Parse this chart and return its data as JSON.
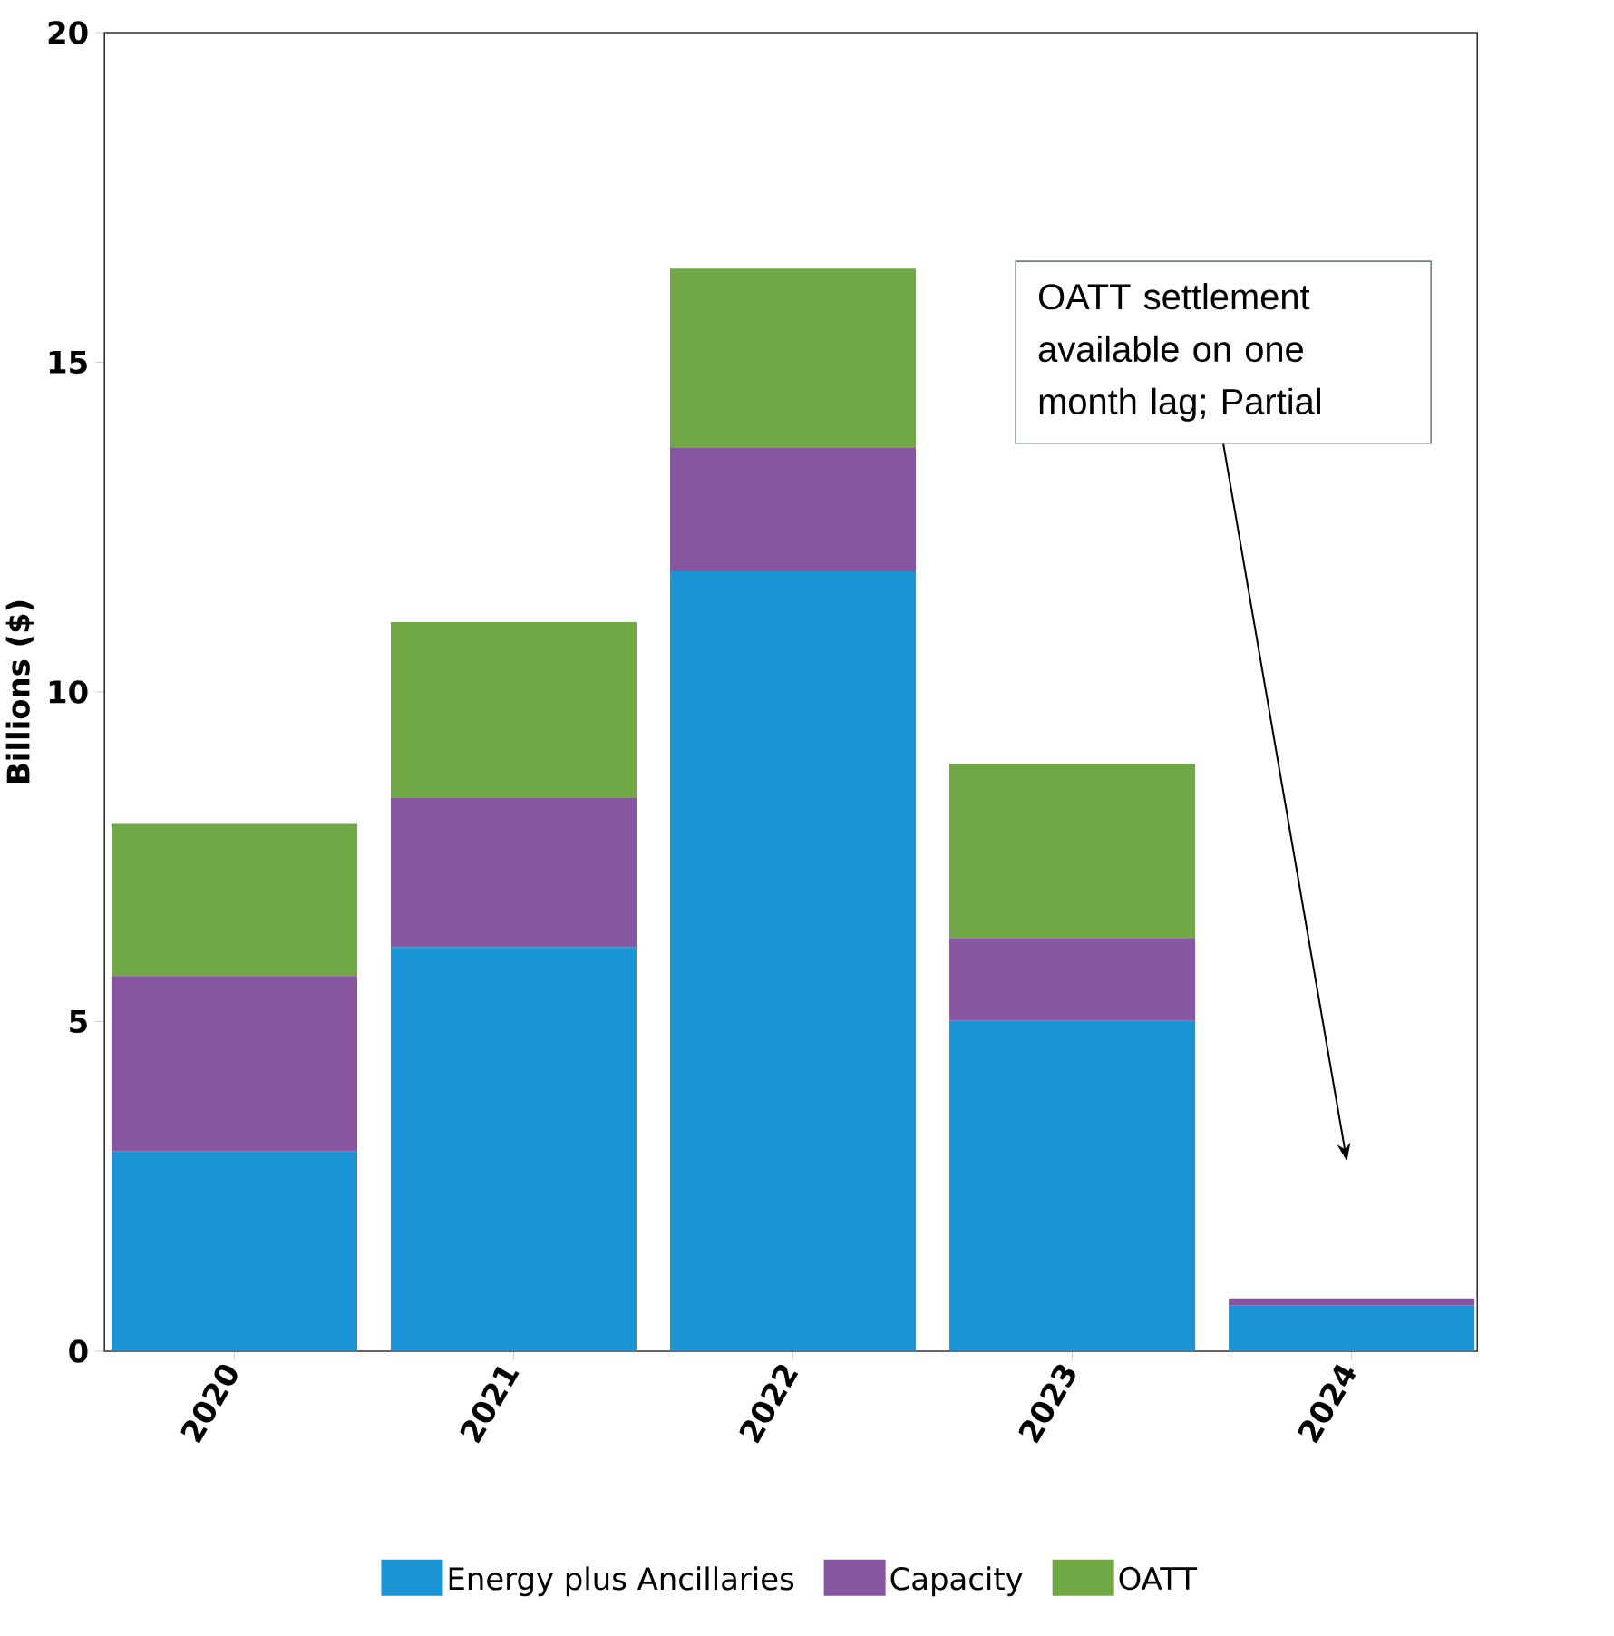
{
  "chart_data": {
    "type": "bar",
    "stacked": true,
    "ylabel": "Billions ($)",
    "categories": [
      "2020",
      "2021",
      "2022",
      "2023",
      "2024"
    ],
    "series": [
      {
        "name": "Energy plus Ancillaries",
        "color": "#1a94d4",
        "values": [
          3.03,
          6.13,
          11.83,
          5.01,
          0.69
        ]
      },
      {
        "name": "Capacity",
        "color": "#8855a1",
        "values": [
          2.66,
          2.26,
          1.87,
          1.26,
          0.11
        ]
      },
      {
        "name": "OATT",
        "color": "#70a845",
        "values": [
          2.31,
          2.67,
          2.72,
          2.64,
          null
        ]
      }
    ],
    "ylim": [
      0,
      20
    ],
    "yticks": [
      0,
      5,
      10,
      15,
      20
    ],
    "grid": false,
    "legend": "bottom",
    "annotations": [
      "OATT settlement available on one month lag; Partial"
    ]
  }
}
